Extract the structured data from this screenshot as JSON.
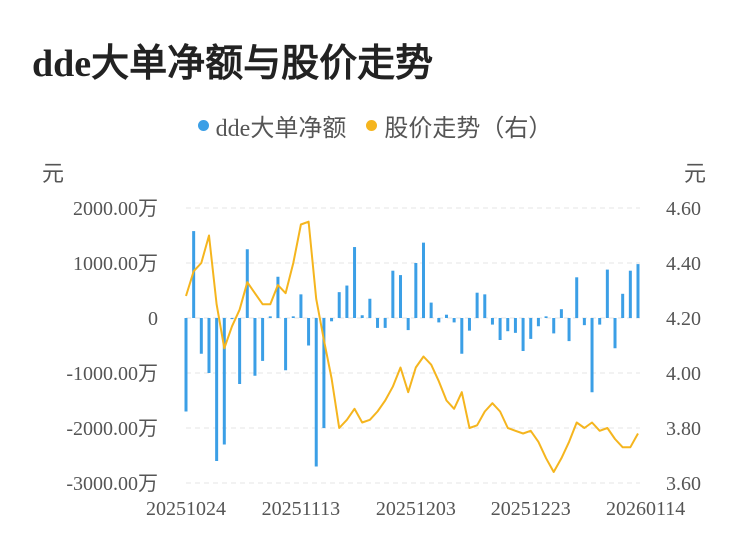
{
  "chart_data": {
    "type": "bar+line",
    "title": "dde大单净额与股价走势",
    "legend": {
      "position": "top-center"
    },
    "y_left": {
      "unit": "元",
      "ticks": [
        "2000.00万",
        "1000.00万",
        "0",
        "-1000.00万",
        "-2000.00万",
        "-3000.00万"
      ],
      "ylim": [
        -3000,
        2000
      ]
    },
    "y_right": {
      "unit": "元",
      "ticks": [
        "4.60",
        "4.40",
        "4.20",
        "4.00",
        "3.80",
        "3.60"
      ],
      "ylim": [
        3.6,
        4.6
      ]
    },
    "x_tick_labels": [
      "20251024",
      "20251113",
      "20251203",
      "20251223",
      "20260114"
    ],
    "x_tick_indices": [
      0,
      15,
      30,
      45,
      60
    ],
    "series": [
      {
        "name": "dde大单净额",
        "type": "bar",
        "color": "#3b9fe6",
        "values": [
          -1700,
          1580,
          -650,
          -1000,
          -2600,
          -2300,
          -20,
          -1200,
          1250,
          -1050,
          -780,
          30,
          750,
          -950,
          30,
          430,
          -500,
          -2700,
          -2000,
          -60,
          470,
          590,
          1290,
          50,
          350,
          -180,
          -180,
          860,
          780,
          -220,
          1000,
          1370,
          280,
          -80,
          60,
          -80,
          -650,
          -230,
          460,
          430,
          -120,
          -400,
          -240,
          -270,
          -600,
          -380,
          -150,
          30,
          -280,
          160,
          -420,
          740,
          -130,
          -1350,
          -120,
          880,
          -550,
          440,
          860,
          980
        ]
      },
      {
        "name": "股价走势（右）",
        "type": "line",
        "color": "#f5b51e",
        "values": [
          4.28,
          4.37,
          4.4,
          4.5,
          4.25,
          4.09,
          4.17,
          4.23,
          4.33,
          4.29,
          4.25,
          4.25,
          4.32,
          4.29,
          4.4,
          4.54,
          4.55,
          4.27,
          4.12,
          3.98,
          3.8,
          3.83,
          3.87,
          3.82,
          3.83,
          3.86,
          3.9,
          3.95,
          4.02,
          3.93,
          4.02,
          4.06,
          4.03,
          3.97,
          3.9,
          3.87,
          3.93,
          3.8,
          3.81,
          3.86,
          3.89,
          3.86,
          3.8,
          3.79,
          3.78,
          3.79,
          3.75,
          3.69,
          3.64,
          3.69,
          3.75,
          3.82,
          3.8,
          3.82,
          3.79,
          3.8,
          3.76,
          3.73,
          3.73,
          3.78
        ]
      }
    ]
  }
}
